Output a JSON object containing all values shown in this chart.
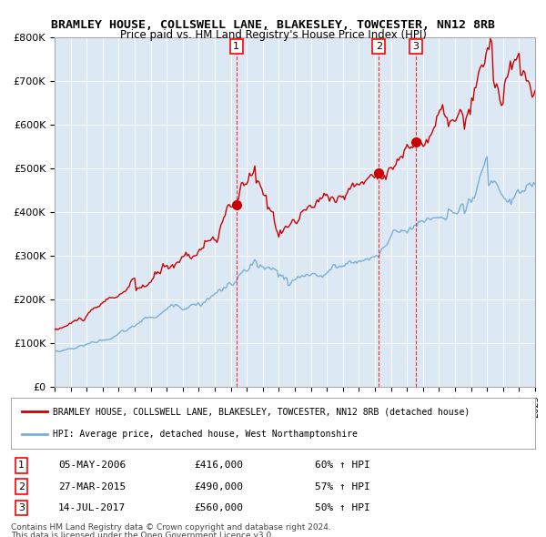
{
  "title1": "BRAMLEY HOUSE, COLLSWELL LANE, BLAKESLEY, TOWCESTER, NN12 8RB",
  "title2": "Price paid vs. HM Land Registry's House Price Index (HPI)",
  "legend_red": "BRAMLEY HOUSE, COLLSWELL LANE, BLAKESLEY, TOWCESTER, NN12 8RB (detached house)",
  "legend_blue": "HPI: Average price, detached house, West Northamptonshire",
  "footer1": "Contains HM Land Registry data © Crown copyright and database right 2024.",
  "footer2": "This data is licensed under the Open Government Licence v3.0.",
  "transactions": [
    {
      "num": "1",
      "date": "05-MAY-2006",
      "price": "£416,000",
      "hpi": "60% ↑ HPI",
      "year": 2006.35
    },
    {
      "num": "2",
      "date": "27-MAR-2015",
      "price": "£490,000",
      "hpi": "57% ↑ HPI",
      "year": 2015.24
    },
    {
      "num": "3",
      "date": "14-JUL-2017",
      "price": "£560,000",
      "hpi": "50% ↑ HPI",
      "year": 2017.54
    }
  ],
  "transaction_prices": [
    416000,
    490000,
    560000
  ],
  "bg_color": "#dce9f5",
  "plot_bg": "#dce9f5",
  "red_color": "#cc0000",
  "blue_color": "#7ab0d4",
  "ylim": [
    0,
    800000
  ],
  "yticks": [
    0,
    100000,
    200000,
    300000,
    400000,
    500000,
    600000,
    700000,
    800000
  ]
}
